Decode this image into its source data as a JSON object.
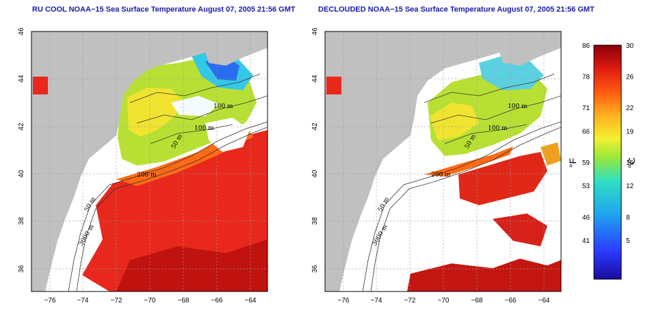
{
  "titles": {
    "left": "RU COOL NOAA−15 Sea Surface Temperature August 07, 2005 21:56 GMT",
    "right": "DECLOUDED NOAA−15 Sea Surface Temperature August 07, 2005 21:56 GMT"
  },
  "x_ticks": [
    "−76",
    "−74",
    "−72",
    "−70",
    "−68",
    "−66",
    "−64"
  ],
  "y_ticks": [
    "46",
    "44",
    "42",
    "40",
    "38",
    "36"
  ],
  "contour_labels": [
    "100 m",
    "100 m",
    "50 m",
    "200 m",
    "50 m",
    "3000 m"
  ],
  "colorbar": {
    "fahrenheit_ticks": [
      "86",
      "78",
      "71",
      "66",
      "59",
      "53",
      "46",
      "41"
    ],
    "celsius_ticks": [
      "30",
      "26",
      "22",
      "19",
      "15",
      "12",
      "8",
      "5"
    ],
    "fahrenheit_unit": "°F",
    "celsius_unit": "°C",
    "range_celsius": [
      0,
      30
    ]
  },
  "colors": {
    "land": "#c0c0c0",
    "cloud": "#ffffff",
    "title": "#1a1aa8",
    "gridline": "#9a9a9a"
  }
}
